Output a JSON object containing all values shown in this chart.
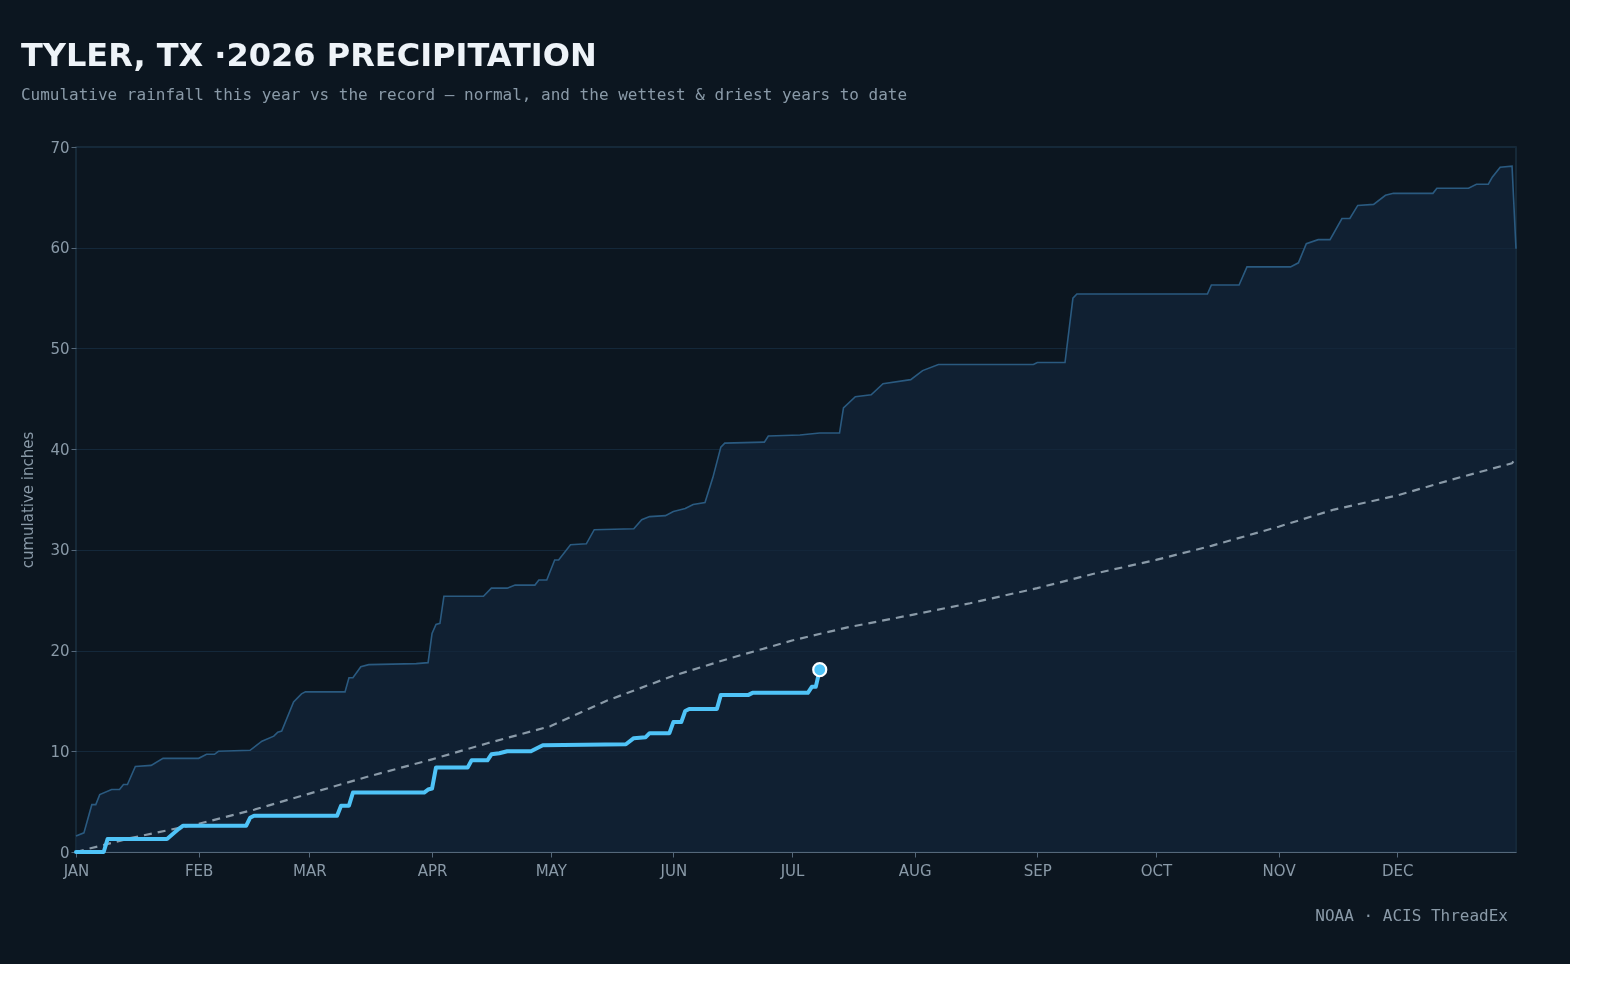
{
  "chart_data": {
    "type": "line",
    "title": "TYLER, TX ·2026 PRECIPITATION",
    "subtitle": "Cumulative rainfall this year vs the record — normal, and the wettest & driest years to date",
    "ylabel": "cumulative inches",
    "annotations": [
      "NOAA · ACIS ThreadEx"
    ],
    "xlim": [
      "2026-01-01",
      "2026-12-31"
    ],
    "xticks": [
      {
        "value": "2026-01-01",
        "label": "JAN"
      },
      {
        "value": "2026-02-01",
        "label": "FEB"
      },
      {
        "value": "2026-03-01",
        "label": "MAR"
      },
      {
        "value": "2026-04-01",
        "label": "APR"
      },
      {
        "value": "2026-05-01",
        "label": "MAY"
      },
      {
        "value": "2026-06-01",
        "label": "JUN"
      },
      {
        "value": "2026-07-01",
        "label": "JUL"
      },
      {
        "value": "2026-08-01",
        "label": "AUG"
      },
      {
        "value": "2026-09-01",
        "label": "SEP"
      },
      {
        "value": "2026-10-01",
        "label": "OCT"
      },
      {
        "value": "2026-11-01",
        "label": "NOV"
      },
      {
        "value": "2026-12-01",
        "label": "DEC"
      }
    ],
    "ylim": [
      0,
      70
    ],
    "yticks": [
      0,
      10,
      20,
      30,
      40,
      50,
      60,
      70
    ],
    "grid": "y",
    "series": [
      {
        "type": "area",
        "color": "#2a5a80",
        "x": [
          "2026-01-01",
          "2026-01-03",
          "2026-01-05",
          "2026-01-06",
          "2026-01-07",
          "2026-01-10",
          "2026-01-12",
          "2026-01-13",
          "2026-01-14",
          "2026-01-16",
          "2026-01-20",
          "2026-01-23",
          "2026-02-01",
          "2026-02-03",
          "2026-02-05",
          "2026-02-06",
          "2026-02-14",
          "2026-02-17",
          "2026-02-20",
          "2026-02-21",
          "2026-02-22",
          "2026-02-25",
          "2026-02-27",
          "2026-02-28",
          "2026-03-10",
          "2026-03-11",
          "2026-03-12",
          "2026-03-14",
          "2026-03-16",
          "2026-03-28",
          "2026-03-31",
          "2026-04-01",
          "2026-04-02",
          "2026-04-03",
          "2026-04-04",
          "2026-04-14",
          "2026-04-16",
          "2026-04-20",
          "2026-04-22",
          "2026-04-27",
          "2026-04-28",
          "2026-04-30",
          "2026-05-02",
          "2026-05-03",
          "2026-05-06",
          "2026-05-10",
          "2026-05-12",
          "2026-05-22",
          "2026-05-24",
          "2026-05-26",
          "2026-05-30",
          "2026-06-01",
          "2026-06-04",
          "2026-06-06",
          "2026-06-09",
          "2026-06-11",
          "2026-06-13",
          "2026-06-14",
          "2026-06-24",
          "2026-06-25",
          "2026-07-03",
          "2026-07-08",
          "2026-07-13",
          "2026-07-14",
          "2026-07-17",
          "2026-07-21",
          "2026-07-24",
          "2026-07-31",
          "2026-08-03",
          "2026-08-07",
          "2026-08-31",
          "2026-09-01",
          "2026-09-08",
          "2026-09-10",
          "2026-09-11",
          "2026-10-14",
          "2026-10-15",
          "2026-10-22",
          "2026-10-24",
          "2026-11-04",
          "2026-11-06",
          "2026-11-08",
          "2026-11-11",
          "2026-11-14",
          "2026-11-17",
          "2026-11-19",
          "2026-11-21",
          "2026-11-25",
          "2026-11-28",
          "2026-11-30",
          "2026-12-10",
          "2026-12-11",
          "2026-12-19",
          "2026-12-21",
          "2026-12-24",
          "2026-12-25",
          "2026-12-27",
          "2026-12-30",
          "2026-12-31"
        ],
        "values": [
          1.6,
          1.9,
          4.7,
          4.7,
          5.7,
          6.2,
          6.2,
          6.7,
          6.7,
          8.5,
          8.6,
          9.3,
          9.3,
          9.7,
          9.7,
          10.0,
          10.1,
          11.0,
          11.5,
          11.9,
          12.0,
          14.9,
          15.7,
          15.9,
          15.9,
          17.3,
          17.3,
          18.4,
          18.6,
          18.7,
          18.8,
          21.7,
          22.6,
          22.7,
          25.4,
          25.4,
          26.2,
          26.2,
          26.5,
          26.5,
          27.0,
          27.0,
          29.0,
          29.0,
          30.5,
          30.6,
          32.0,
          32.1,
          33.0,
          33.3,
          33.4,
          33.8,
          34.1,
          34.5,
          34.7,
          37.2,
          40.2,
          40.6,
          40.7,
          41.3,
          41.4,
          41.6,
          41.6,
          44.1,
          45.2,
          45.4,
          46.5,
          46.9,
          47.8,
          48.4,
          48.4,
          48.6,
          48.6,
          55.0,
          55.4,
          55.4,
          56.3,
          56.3,
          58.1,
          58.1,
          58.5,
          60.4,
          60.8,
          60.8,
          62.9,
          62.9,
          64.2,
          64.3,
          65.2,
          65.4,
          65.4,
          65.9,
          65.9,
          66.3,
          66.3,
          67.0,
          68.0,
          68.1,
          59.9
        ]
      },
      {
        "color": "#8a9aa8",
        "line_style": "dashed",
        "x": [
          "2026-01-01",
          "2026-01-15",
          "2026-02-01",
          "2026-02-15",
          "2026-03-01",
          "2026-03-15",
          "2026-04-01",
          "2026-04-15",
          "2026-05-01",
          "2026-05-15",
          "2026-06-01",
          "2026-06-15",
          "2026-07-01",
          "2026-07-15",
          "2026-08-01",
          "2026-08-15",
          "2026-09-01",
          "2026-09-15",
          "2026-10-01",
          "2026-10-15",
          "2026-11-01",
          "2026-11-15",
          "2026-12-01",
          "2026-12-15",
          "2026-12-30",
          "2026-12-31"
        ],
        "values": [
          0,
          1.4,
          2.8,
          4.2,
          5.8,
          7.4,
          9.2,
          10.8,
          12.5,
          15.0,
          17.5,
          19.2,
          21.0,
          22.3,
          23.6,
          24.7,
          26.2,
          27.6,
          29.0,
          30.4,
          32.3,
          34.0,
          35.4,
          37.0,
          38.6,
          39.2
        ]
      },
      {
        "color": "#4fc3f7",
        "x": [
          "2026-01-01",
          "2026-01-08",
          "2026-01-09",
          "2026-01-24",
          "2026-01-27",
          "2026-01-28",
          "2026-02-13",
          "2026-02-14",
          "2026-02-15",
          "2026-03-08",
          "2026-03-09",
          "2026-03-11",
          "2026-03-12",
          "2026-03-30",
          "2026-03-31",
          "2026-04-01",
          "2026-04-02",
          "2026-04-10",
          "2026-04-11",
          "2026-04-15",
          "2026-04-16",
          "2026-04-18",
          "2026-04-20",
          "2026-04-26",
          "2026-04-29",
          "2026-05-20",
          "2026-05-22",
          "2026-05-25",
          "2026-05-26",
          "2026-05-31",
          "2026-06-01",
          "2026-06-03",
          "2026-06-04",
          "2026-06-05",
          "2026-06-12",
          "2026-06-13",
          "2026-06-20",
          "2026-06-21",
          "2026-07-05",
          "2026-07-06",
          "2026-07-07",
          "2026-07-08"
        ],
        "values": [
          0,
          0,
          1.3,
          1.3,
          2.3,
          2.6,
          2.6,
          3.4,
          3.6,
          3.6,
          4.6,
          4.6,
          5.9,
          5.9,
          6.2,
          6.3,
          8.4,
          8.4,
          9.1,
          9.1,
          9.7,
          9.8,
          10.0,
          10.0,
          10.6,
          10.7,
          11.3,
          11.4,
          11.8,
          11.8,
          12.9,
          12.9,
          14.0,
          14.2,
          14.2,
          15.6,
          15.6,
          15.8,
          15.8,
          16.4,
          16.4,
          18.1
        ]
      },
      {
        "type": "scatter",
        "color": "#4fc3f7",
        "marker": "circle",
        "x": [
          "2026-07-08"
        ],
        "values": [
          18.1
        ]
      }
    ]
  }
}
